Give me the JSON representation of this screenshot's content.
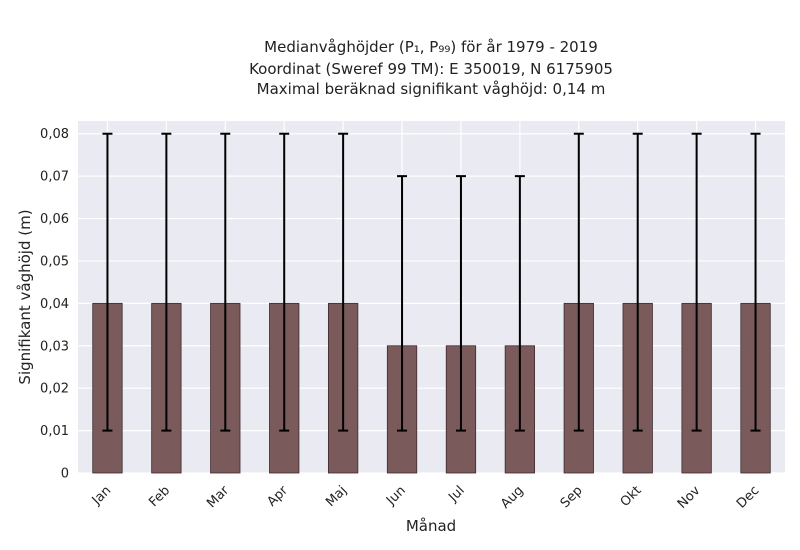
{
  "chart_data": {
    "type": "bar",
    "title_lines": [
      "Medianvåghöjder (P₁, P₉₉) för år 1979 - 2019",
      "Koordinat (Sweref 99 TM): E 350019, N 6175905",
      "Maximal beräknad signifikant våghöjd: 0,14 m"
    ],
    "xlabel": "Månad",
    "ylabel": "Signifikant våghöjd (m)",
    "categories": [
      "Jan",
      "Feb",
      "Mar",
      "Apr",
      "Maj",
      "Jun",
      "Jul",
      "Aug",
      "Sep",
      "Okt",
      "Nov",
      "Dec"
    ],
    "values": [
      0.04,
      0.04,
      0.04,
      0.04,
      0.04,
      0.03,
      0.03,
      0.03,
      0.04,
      0.04,
      0.04,
      0.04
    ],
    "error_low": [
      0.01,
      0.01,
      0.01,
      0.01,
      0.01,
      0.01,
      0.01,
      0.01,
      0.01,
      0.01,
      0.01,
      0.01
    ],
    "error_high": [
      0.08,
      0.08,
      0.08,
      0.08,
      0.08,
      0.07,
      0.07,
      0.07,
      0.08,
      0.08,
      0.08,
      0.08
    ],
    "ylim": [
      0,
      0.083
    ],
    "yticks": [
      0,
      0.01,
      0.02,
      0.03,
      0.04,
      0.05,
      0.06,
      0.07,
      0.08
    ],
    "ytick_labels": [
      "0",
      "0,01",
      "0,02",
      "0,03",
      "0,04",
      "0,05",
      "0,06",
      "0,07",
      "0,08"
    ],
    "grid": true,
    "colors": {
      "bar_fill": "#7a5a5a",
      "bar_edge": "#3e2b2b",
      "error_bar": "#000000",
      "plot_background": "#eaeaf2",
      "grid": "#ffffff"
    }
  }
}
